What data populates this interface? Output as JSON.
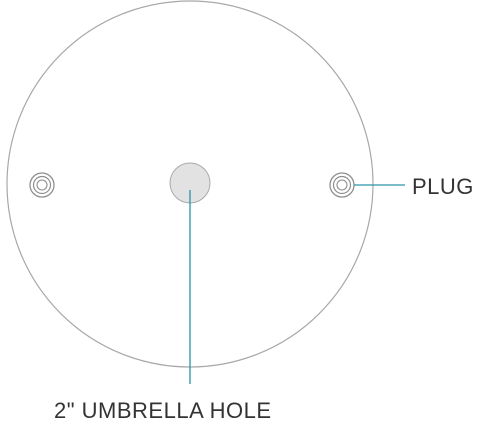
{
  "labels": {
    "plug": "PLUG",
    "umbrella_hole": "2\" UMBRELLA HOLE"
  },
  "colors": {
    "table_outline": "#a8a8a8",
    "plug_ring": "#8f8f8f",
    "hole_fill": "#e2e2e2",
    "hole_stroke": "#aaaaaa",
    "leader_line": "#2a93a8",
    "label_text": "#333333"
  }
}
